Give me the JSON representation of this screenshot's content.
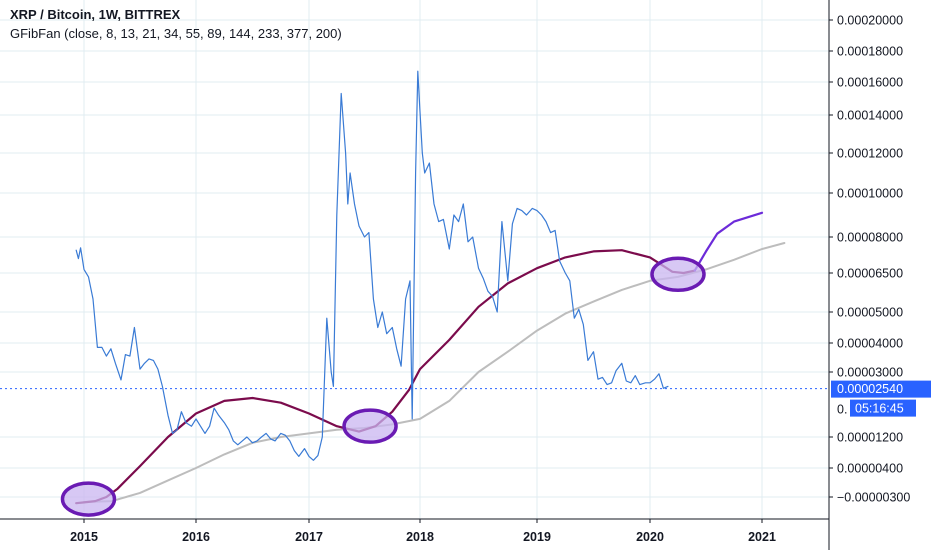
{
  "chart_data": {
    "type": "line",
    "title": "XRP / Bitcoin, 1W, BITTREX",
    "indicator": "GFibFan (close, 8, 13, 21, 34, 55, 89, 144, 233, 377, 200)",
    "x_ticks": [
      "2015",
      "2016",
      "2017",
      "2018",
      "2019",
      "2020",
      "2021"
    ],
    "x_tick_values": [
      2015,
      2016,
      2017,
      2018,
      2019,
      2020,
      2021
    ],
    "y_ticks": [
      "0.00020000",
      "0.00018000",
      "0.00016000",
      "0.00014000",
      "0.00012000",
      "0.00010000",
      "0.00008000",
      "0.00006500",
      "0.00005000",
      "0.00004000",
      "0.00003000",
      "0.00001200",
      "0.00000400",
      "−0.00000300"
    ],
    "y_tick_values": [
      0.0002,
      0.00018,
      0.00016,
      0.00014,
      0.00012,
      0.0001,
      8e-05,
      6.5e-05,
      5e-05,
      4e-05,
      3e-05,
      1.2e-05,
      4e-06,
      -3e-06
    ],
    "current_price_label": "0.00002540",
    "current_price": 2.54e-05,
    "countdown_label": "05:16:45",
    "partial_axis_label": "0.",
    "colors": {
      "price": "#3a7bd5",
      "fib_fast": "#7b0b4c",
      "fib_slow": "#bdbdbd",
      "projection": "#6c2bd9",
      "ellipse_fill": "#c9b6f0",
      "ellipse_stroke": "#6a1bb3",
      "price_label_bg": "#2962ff"
    },
    "series": [
      {
        "type": "line",
        "x": [
          2014.93,
          2014.95,
          2014.97,
          2015.0,
          2015.04,
          2015.08,
          2015.12,
          2015.16,
          2015.2,
          2015.24,
          2015.28,
          2015.33,
          2015.37,
          2015.41,
          2015.45,
          2015.5,
          2015.54,
          2015.58,
          2015.62,
          2015.66,
          2015.7,
          2015.75,
          2015.79,
          2015.83,
          2015.87,
          2015.91,
          2015.96,
          2016.0,
          2016.04,
          2016.08,
          2016.12,
          2016.16,
          2016.2,
          2016.25,
          2016.29,
          2016.33,
          2016.37,
          2016.41,
          2016.45,
          2016.5,
          2016.54,
          2016.58,
          2016.62,
          2016.66,
          2016.7,
          2016.75,
          2016.79,
          2016.83,
          2016.87,
          2016.91,
          2016.96,
          2017.0,
          2017.04,
          2017.08,
          2017.12,
          2017.16,
          2017.2,
          2017.22,
          2017.25,
          2017.29,
          2017.33,
          2017.35,
          2017.37,
          2017.41,
          2017.45,
          2017.5,
          2017.54,
          2017.58,
          2017.62,
          2017.66,
          2017.7,
          2017.75,
          2017.79,
          2017.83,
          2017.87,
          2017.91,
          2017.93,
          2017.96,
          2017.98,
          2018.0,
          2018.02,
          2018.04,
          2018.08,
          2018.12,
          2018.16,
          2018.2,
          2018.25,
          2018.29,
          2018.33,
          2018.37,
          2018.41,
          2018.45,
          2018.5,
          2018.54,
          2018.58,
          2018.62,
          2018.66,
          2018.7,
          2018.75,
          2018.79,
          2018.83,
          2018.87,
          2018.91,
          2018.96,
          2019.0,
          2019.04,
          2019.08,
          2019.12,
          2019.16,
          2019.2,
          2019.25,
          2019.29,
          2019.33,
          2019.37,
          2019.41,
          2019.45,
          2019.5,
          2019.54,
          2019.58,
          2019.62,
          2019.66,
          2019.7,
          2019.75,
          2019.79,
          2019.83,
          2019.87,
          2019.91,
          2019.96,
          2020.0,
          2020.04,
          2020.08,
          2020.12,
          2020.16
        ],
        "y": [
          7.45e-05,
          7.1e-05,
          7.55e-05,
          6.65e-05,
          6.35e-05,
          5.5e-05,
          3.85e-05,
          3.85e-05,
          3.55e-05,
          3.8e-05,
          3.3e-05,
          2.78e-05,
          3.6e-05,
          3.55e-05,
          4.5e-05,
          3.1e-05,
          3.3e-05,
          3.45e-05,
          3.4e-05,
          3.1e-05,
          2.6e-05,
          1.8e-05,
          1.3e-05,
          1.4e-05,
          1.9e-05,
          1.6e-05,
          1.5e-05,
          1.7e-05,
          1.5e-05,
          1.3e-05,
          1.5e-05,
          2e-05,
          1.8e-05,
          1.6e-05,
          1.4e-05,
          1.1e-05,
          1e-05,
          1.1e-05,
          1.2e-05,
          1.05e-05,
          1.1e-05,
          1.2e-05,
          1.3e-05,
          1.15e-05,
          1.1e-05,
          1.3e-05,
          1.25e-05,
          1.1e-05,
          8.5e-06,
          7e-06,
          9e-06,
          7e-06,
          6e-06,
          7.2e-06,
          1.2e-05,
          4.8e-05,
          3e-05,
          2.6e-05,
          9e-05,
          0.000153,
          0.00012,
          9.5e-05,
          0.00011,
          9.5e-05,
          8.5e-05,
          8e-05,
          8.2e-05,
          5.5e-05,
          4.5e-05,
          5e-05,
          4.3e-05,
          4.5e-05,
          3.8e-05,
          3.2e-05,
          5.5e-05,
          6.2e-05,
          1.7e-05,
          0.00011,
          0.000167,
          0.000142,
          0.00012,
          0.00011,
          0.000115,
          9.5e-05,
          8.7e-05,
          8.8e-05,
          7.5e-05,
          9e-05,
          8.7e-05,
          9.5e-05,
          7.8e-05,
          8e-05,
          6.7e-05,
          6.3e-05,
          5.8e-05,
          5.6e-05,
          5e-05,
          8.7e-05,
          6.2e-05,
          8.6e-05,
          9.3e-05,
          9.2e-05,
          9e-05,
          9.3e-05,
          9.2e-05,
          9e-05,
          8.7e-05,
          8.2e-05,
          8.3e-05,
          7e-05,
          6.5e-05,
          6.2e-05,
          4.8e-05,
          5.1e-05,
          4.6e-05,
          3.4e-05,
          3.7e-05,
          2.8e-05,
          2.85e-05,
          2.65e-05,
          2.7e-05,
          3.05e-05,
          3.3e-05,
          2.75e-05,
          2.7e-05,
          2.9e-05,
          2.65e-05,
          2.7e-05,
          2.7e-05,
          2.8e-05,
          2.95e-05,
          2.55e-05,
          2.6e-05
        ]
      },
      {
        "type": "line",
        "x": [
          2014.93,
          2015.0,
          2015.1,
          2015.2,
          2015.3,
          2015.5,
          2015.75,
          2016.0,
          2016.25,
          2016.5,
          2016.75,
          2017.0,
          2017.25,
          2017.45,
          2017.6,
          2017.75,
          2017.9,
          2018.0,
          2018.25,
          2018.5,
          2018.75,
          2019.0,
          2019.25,
          2019.5,
          2019.75,
          2020.0,
          2020.1,
          2020.2,
          2020.3,
          2020.4
        ],
        "y": [
          -4.5e-06,
          -4.3e-06,
          -4e-06,
          -3e-06,
          -1e-06,
          4.5e-06,
          1.2e-05,
          1.85e-05,
          2.2e-05,
          2.28e-05,
          2.15e-05,
          1.85e-05,
          1.5e-05,
          1.35e-05,
          1.5e-05,
          1.9e-05,
          2.5e-05,
          3.1e-05,
          4.1e-05,
          5.2e-05,
          6.1e-05,
          6.7e-05,
          7.15e-05,
          7.4e-05,
          7.45e-05,
          7.15e-05,
          6.85e-05,
          6.55e-05,
          6.5e-05,
          6.6e-05
        ]
      },
      {
        "type": "line",
        "x": [
          2015.0,
          2015.25,
          2015.5,
          2015.75,
          2016.0,
          2016.25,
          2016.5,
          2016.75,
          2017.0,
          2017.25,
          2017.5,
          2017.75,
          2018.0,
          2018.25,
          2018.5,
          2018.75,
          2019.0,
          2019.25,
          2019.5,
          2019.75,
          2020.0,
          2020.25,
          2020.5,
          2020.75,
          2021.0,
          2021.2
        ],
        "y": [
          -4.2e-06,
          -4e-06,
          -2e-06,
          1e-06,
          4e-06,
          7.5e-06,
          1.05e-05,
          1.2e-05,
          1.3e-05,
          1.4e-05,
          1.45e-05,
          1.55e-05,
          1.7e-05,
          2.2e-05,
          3e-05,
          3.7e-05,
          4.4e-05,
          4.95e-05,
          5.4e-05,
          5.85e-05,
          6.2e-05,
          6.35e-05,
          6.65e-05,
          7.05e-05,
          7.5e-05,
          7.75e-05
        ]
      },
      {
        "type": "line",
        "x": [
          2020.4,
          2020.5,
          2020.6,
          2020.75,
          2021.0
        ],
        "y": [
          6.6e-05,
          7.4e-05,
          8.15e-05,
          8.7e-05,
          9.1e-05
        ]
      }
    ],
    "highlights": [
      {
        "x": 2015.04,
        "y": -3.5e-06
      },
      {
        "x": 2017.55,
        "y": 1.5e-05
      },
      {
        "x": 2020.25,
        "y": 6.45e-05
      }
    ]
  }
}
